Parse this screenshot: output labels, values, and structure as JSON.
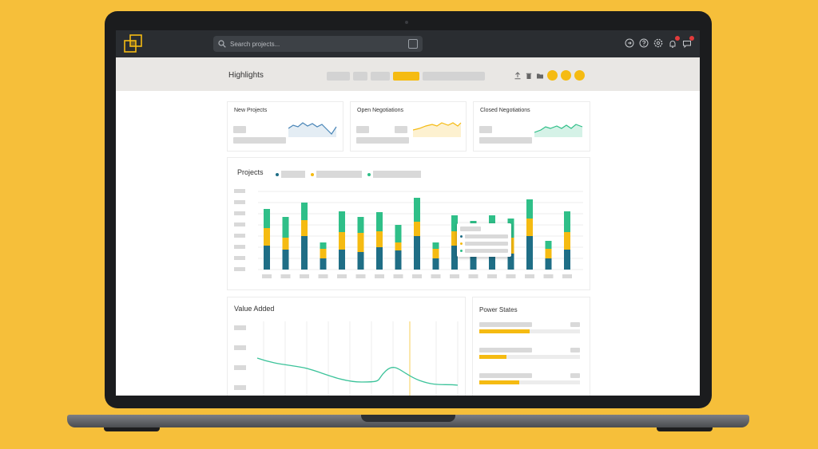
{
  "colors": {
    "accent": "#f5bb12",
    "teal": "#1f6e86",
    "green": "#2fbf88",
    "topbar": "#2a2d31",
    "background": "#f6bf3a"
  },
  "search": {
    "placeholder": "Search projects..."
  },
  "header": {
    "title": "Highlights"
  },
  "kpi_cards": [
    {
      "title": "New Projects",
      "sparkline_color": "#4a86b8"
    },
    {
      "title": "Open Negotiations",
      "sparkline_color": "#f5bb12"
    },
    {
      "title": "Closed Negotiations",
      "sparkline_color": "#2fbf88"
    }
  ],
  "projects_chart": {
    "title": "Projects",
    "legend_colors": [
      "#1f6e86",
      "#f5bb12",
      "#2fbf88"
    ],
    "stacks": [
      [
        30,
        22,
        24
      ],
      [
        25,
        15,
        26
      ],
      [
        42,
        20,
        22
      ],
      [
        14,
        12,
        8
      ],
      [
        25,
        22,
        26
      ],
      [
        22,
        24,
        20
      ],
      [
        28,
        20,
        24
      ],
      [
        24,
        10,
        22
      ],
      [
        42,
        18,
        30
      ],
      [
        14,
        12,
        8
      ],
      [
        30,
        18,
        20
      ],
      [
        25,
        26,
        10
      ],
      [
        30,
        20,
        18
      ],
      [
        20,
        20,
        24
      ],
      [
        42,
        22,
        24
      ],
      [
        14,
        12,
        10
      ],
      [
        25,
        22,
        26
      ]
    ]
  },
  "value_added": {
    "title": "Value Added"
  },
  "power_states": {
    "title": "Power States",
    "levels": [
      0.5,
      0.27,
      0.4
    ]
  },
  "topbar_icons": [
    "logout-icon",
    "help-icon",
    "settings-icon",
    "notifications-icon",
    "messages-icon"
  ]
}
